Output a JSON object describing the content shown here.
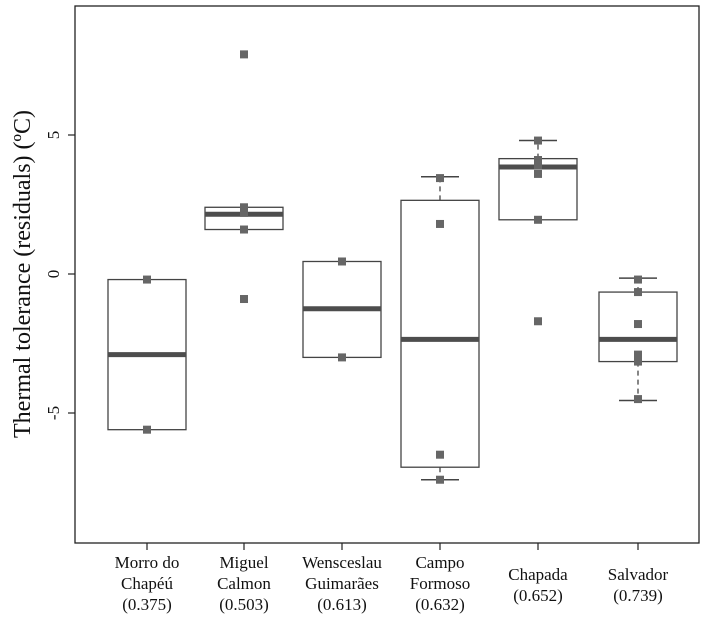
{
  "chart_data": {
    "type": "box",
    "ylabel": "Thermal tolerance (residuals) (ºC)",
    "xlabel": "",
    "title": "",
    "ylim": [
      -9.5,
      9.6
    ],
    "yticks": [
      -5,
      0,
      5
    ],
    "grid": false,
    "legend": "none",
    "categories": [
      {
        "lines": [
          "Morro do",
          "Chapéú",
          "(0.375)"
        ]
      },
      {
        "lines": [
          "Miguel",
          "Calmon",
          "(0.503)"
        ]
      },
      {
        "lines": [
          "Wensceslau",
          "Guimarães",
          "(0.613)"
        ]
      },
      {
        "lines": [
          "Campo",
          "Formoso",
          "(0.632)"
        ]
      },
      {
        "lines": [
          "Chapada",
          "(0.652)"
        ]
      },
      {
        "lines": [
          "Salvador",
          "(0.739)"
        ]
      }
    ],
    "boxes": [
      {
        "q1": -5.6,
        "median": -2.9,
        "q3": -0.2,
        "whisker_low": null,
        "whisker_high": null,
        "points": [
          -0.2,
          -5.6
        ]
      },
      {
        "q1": 1.6,
        "median": 2.15,
        "q3": 2.4,
        "whisker_low": null,
        "whisker_high": null,
        "points": [
          7.9,
          2.4,
          2.2,
          1.6,
          -0.9
        ]
      },
      {
        "q1": -3.0,
        "median": -1.25,
        "q3": 0.45,
        "whisker_low": null,
        "whisker_high": null,
        "points": [
          0.45,
          -3.0
        ]
      },
      {
        "q1": -6.95,
        "median": -2.35,
        "q3": 2.65,
        "whisker_low": -7.4,
        "whisker_high": 3.5,
        "points": [
          3.45,
          1.8,
          -6.5,
          -7.4
        ]
      },
      {
        "q1": 1.95,
        "median": 3.85,
        "q3": 4.15,
        "whisker_low": null,
        "whisker_high": 4.8,
        "points": [
          4.8,
          4.1,
          3.9,
          3.6,
          1.95,
          -1.7
        ]
      },
      {
        "q1": -3.15,
        "median": -2.35,
        "q3": -0.65,
        "whisker_low": -4.55,
        "whisker_high": -0.15,
        "points": [
          -0.2,
          -0.65,
          -1.8,
          -2.9,
          -3.15,
          -4.5
        ]
      }
    ],
    "colors": {
      "median": "#4d4d4d",
      "point": "#666666",
      "box": "#444444",
      "axis": "#222222"
    }
  }
}
